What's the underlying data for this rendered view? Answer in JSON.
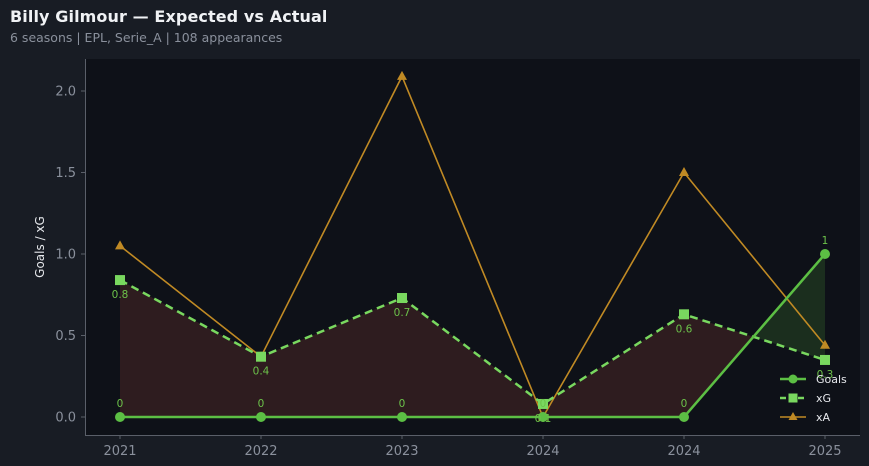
{
  "header": {
    "title": "Billy Gilmour — Expected vs Actual",
    "subtitle": "6 seasons | EPL, Serie_A | 108 appearances"
  },
  "colors": {
    "background": "#181c24",
    "plot_background": "#0e1118",
    "goals": "#5cbf44",
    "xg": "#79d85f",
    "xa": "#c08a24",
    "underperform_fill": "#2e1c1f",
    "overperform_fill": "#1b2e1e"
  },
  "chart_data": {
    "type": "line",
    "title": "Billy Gilmour — Expected vs Actual",
    "subtitle": "6 seasons | EPL, Serie_A | 108 appearances",
    "xlabel": "",
    "ylabel": "Goals / xG",
    "categories": [
      "2021",
      "2022",
      "2023",
      "2024",
      "2024",
      "2025"
    ],
    "ylim": [
      -0.1,
      2.2
    ],
    "yticks": [
      "0.0",
      "0.5",
      "1.0",
      "1.5",
      "2.0"
    ],
    "grid": false,
    "legend_position": "lower right",
    "series": [
      {
        "name": "Goals",
        "style": "solid, circle markers",
        "values": [
          0,
          0,
          0,
          0,
          0,
          1
        ],
        "labels": [
          "0",
          "0",
          "0",
          "0",
          "0",
          "1"
        ]
      },
      {
        "name": "xG",
        "style": "dashed, square markers",
        "values": [
          0.84,
          0.37,
          0.73,
          0.08,
          0.63,
          0.35
        ],
        "labels": [
          "0.8",
          "0.4",
          "0.7",
          "0.1",
          "0.6",
          "0.3"
        ]
      },
      {
        "name": "xA",
        "style": "solid thin, triangle markers",
        "values": [
          1.05,
          0.37,
          2.09,
          0.0,
          1.5,
          0.44
        ]
      }
    ],
    "annotations": [
      "shaded area between Goals and xG: red where xG > Goals, green where Goals > xG"
    ]
  },
  "legend": {
    "goals": "Goals",
    "xg": "xG",
    "xa": "xA"
  }
}
